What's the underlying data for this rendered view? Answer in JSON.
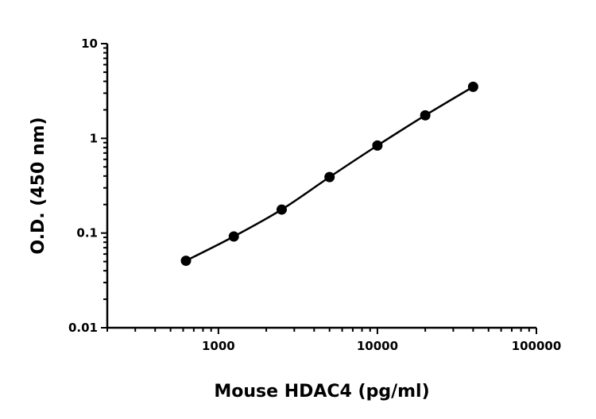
{
  "chart_data": {
    "type": "scatter",
    "title": "",
    "xlabel": "Mouse HDAC4 (pg/ml)",
    "ylabel": "O.D. (450 nm)",
    "x_scale": "log",
    "y_scale": "log",
    "xlim": [
      200,
      100000
    ],
    "ylim": [
      0.01,
      10
    ],
    "x_ticks": [
      1000,
      10000,
      100000
    ],
    "x_tick_labels": [
      "1000",
      "10000",
      "100000"
    ],
    "y_ticks": [
      0.01,
      0.1,
      1,
      10
    ],
    "y_tick_labels": [
      "0.01",
      "0.1",
      "1",
      "10"
    ],
    "grid": false,
    "fit_curve": true,
    "color": "#000000",
    "x": [
      625,
      1250,
      2500,
      5000,
      10000,
      20000,
      40000
    ],
    "y": [
      0.051,
      0.092,
      0.177,
      0.39,
      0.84,
      1.75,
      3.5
    ]
  }
}
